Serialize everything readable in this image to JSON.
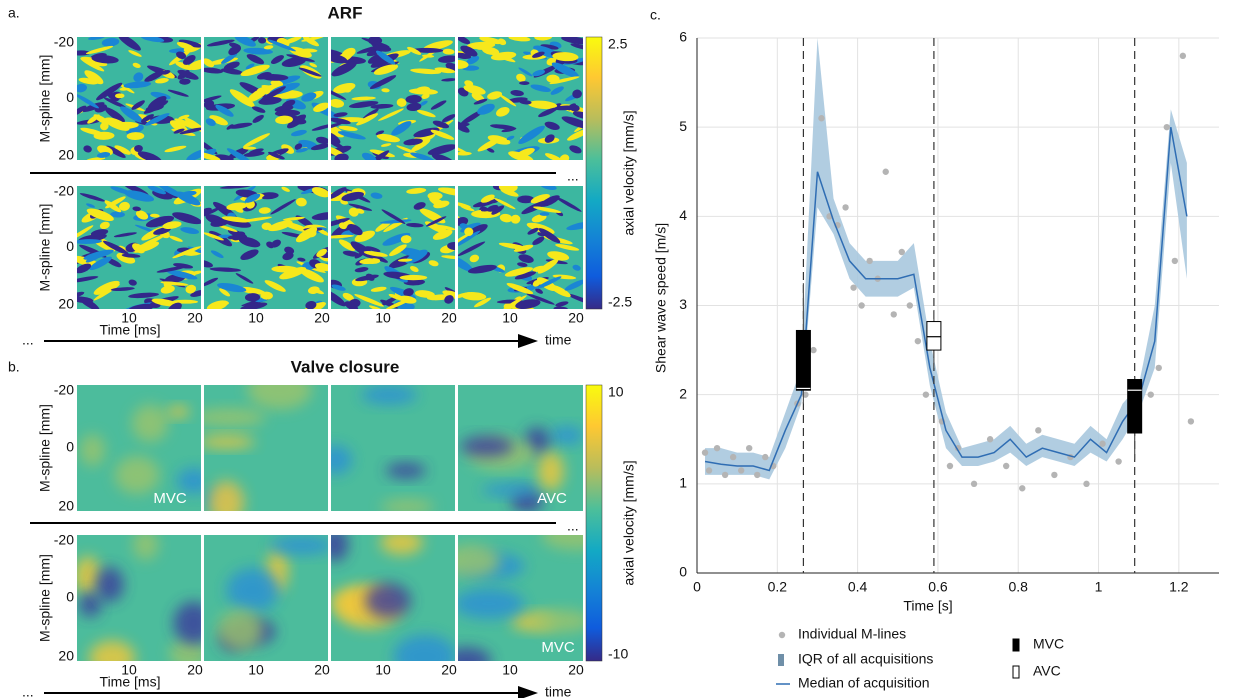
{
  "panel_a": {
    "label": "a.",
    "title": "ARF",
    "y_label": "M-spline [mm]",
    "y_tick_labels": [
      "-20",
      "0",
      "20"
    ],
    "x_tick_labels": [
      "10",
      "20"
    ],
    "x_label": "Time [ms]",
    "colorbar_label": "axial velocity [mm/s]",
    "colorbar_tick_labels": [
      "2.5",
      "-2.5"
    ],
    "ellipsis": "...",
    "axis_label": "time"
  },
  "panel_b": {
    "label": "b.",
    "title": "Valve closure",
    "y_label": "M-spline [mm]",
    "y_tick_labels": [
      "-20",
      "0",
      "20"
    ],
    "x_tick_labels": [
      "10",
      "20"
    ],
    "x_label": "Time [ms]",
    "colorbar_label": "axial velocity [mm/s]",
    "colorbar_tick_labels": [
      "10",
      "-10"
    ],
    "ellipsis": "...",
    "axis_label": "time",
    "annotations": [
      "MVC",
      "AVC",
      "MVC"
    ]
  },
  "chart_data": {
    "type": "line",
    "label": "c.",
    "x_label": "Time [s]",
    "y_label": "Shear wave speed [m/s]",
    "xlim": [
      0,
      1.3
    ],
    "ylim": [
      0,
      6
    ],
    "xticks": [
      0,
      0.2,
      0.4,
      0.6,
      0.8,
      1,
      1.2
    ],
    "yticks": [
      0,
      1,
      2,
      3,
      4,
      5,
      6
    ],
    "grid": true,
    "x": [
      0.02,
      0.06,
      0.1,
      0.14,
      0.18,
      0.22,
      0.26,
      0.3,
      0.34,
      0.38,
      0.42,
      0.46,
      0.5,
      0.54,
      0.58,
      0.62,
      0.66,
      0.7,
      0.74,
      0.78,
      0.82,
      0.86,
      0.9,
      0.94,
      0.98,
      1.02,
      1.06,
      1.1,
      1.14,
      1.18,
      1.22
    ],
    "series": [
      {
        "name": "Median of acquisition",
        "color": "#2f6db3",
        "values": [
          1.25,
          1.22,
          1.2,
          1.2,
          1.15,
          1.6,
          2.0,
          4.5,
          3.95,
          3.5,
          3.3,
          3.3,
          3.3,
          3.35,
          2.3,
          1.6,
          1.3,
          1.3,
          1.35,
          1.5,
          1.3,
          1.4,
          1.35,
          1.3,
          1.5,
          1.35,
          1.7,
          1.95,
          2.6,
          5.0,
          4.0
        ]
      }
    ],
    "iqr": {
      "name": "IQR of all acquisitions",
      "color": "#a8c8de",
      "lower": [
        1.1,
        1.1,
        1.1,
        1.1,
        1.05,
        1.4,
        1.9,
        4.1,
        3.8,
        3.3,
        3.1,
        3.1,
        3.1,
        3.2,
        2.1,
        1.4,
        1.2,
        1.2,
        1.25,
        1.35,
        1.2,
        1.3,
        1.25,
        1.2,
        1.35,
        1.25,
        1.5,
        1.8,
        2.3,
        4.6,
        3.3
      ],
      "upper": [
        1.4,
        1.4,
        1.35,
        1.35,
        1.3,
        1.8,
        2.3,
        6.0,
        4.2,
        3.7,
        3.5,
        3.5,
        3.5,
        3.7,
        2.6,
        1.8,
        1.4,
        1.45,
        1.5,
        1.65,
        1.45,
        1.55,
        1.5,
        1.45,
        1.65,
        1.5,
        1.9,
        2.1,
        3.0,
        5.2,
        4.6
      ]
    },
    "points": {
      "name": "Individual M-lines",
      "color": "#b4b4b4",
      "x": [
        0.02,
        0.03,
        0.05,
        0.07,
        0.09,
        0.11,
        0.13,
        0.15,
        0.17,
        0.19,
        0.25,
        0.27,
        0.29,
        0.31,
        0.33,
        0.35,
        0.37,
        0.39,
        0.41,
        0.43,
        0.45,
        0.47,
        0.49,
        0.51,
        0.53,
        0.55,
        0.57,
        0.61,
        0.63,
        0.65,
        0.69,
        0.73,
        0.77,
        0.81,
        0.85,
        0.89,
        0.93,
        0.97,
        1.01,
        1.05,
        1.13,
        1.15,
        1.17,
        1.19,
        1.21,
        1.23
      ],
      "y": [
        1.35,
        1.15,
        1.4,
        1.1,
        1.3,
        1.15,
        1.4,
        1.1,
        1.3,
        1.2,
        1.9,
        2.0,
        2.5,
        5.1,
        4.0,
        3.9,
        4.1,
        3.2,
        3.0,
        3.5,
        3.3,
        4.5,
        2.9,
        3.6,
        3.0,
        2.6,
        2.0,
        1.7,
        1.2,
        1.4,
        1.0,
        1.5,
        1.2,
        0.95,
        1.6,
        1.1,
        1.3,
        1.0,
        1.45,
        1.25,
        2.0,
        2.3,
        5.0,
        3.5,
        5.8,
        1.7
      ]
    },
    "box_groups": [
      {
        "name": "MVC",
        "fill": "#000000",
        "boxes": [
          {
            "x": 0.265,
            "whislo": 1.9,
            "q1": 2.05,
            "med": 2.07,
            "q3": 2.72,
            "whishi": 3.25
          },
          {
            "x": 1.09,
            "whislo": 1.27,
            "q1": 1.57,
            "med": 2.05,
            "q3": 2.17,
            "whishi": 2.2
          }
        ]
      },
      {
        "name": "AVC",
        "fill": "#ffffff",
        "boxes": [
          {
            "x": 0.59,
            "whislo": 2.3,
            "q1": 2.5,
            "med": 2.65,
            "q3": 2.82,
            "whishi": 2.95
          }
        ]
      }
    ],
    "vlines": [
      0.265,
      0.59,
      1.09
    ]
  }
}
